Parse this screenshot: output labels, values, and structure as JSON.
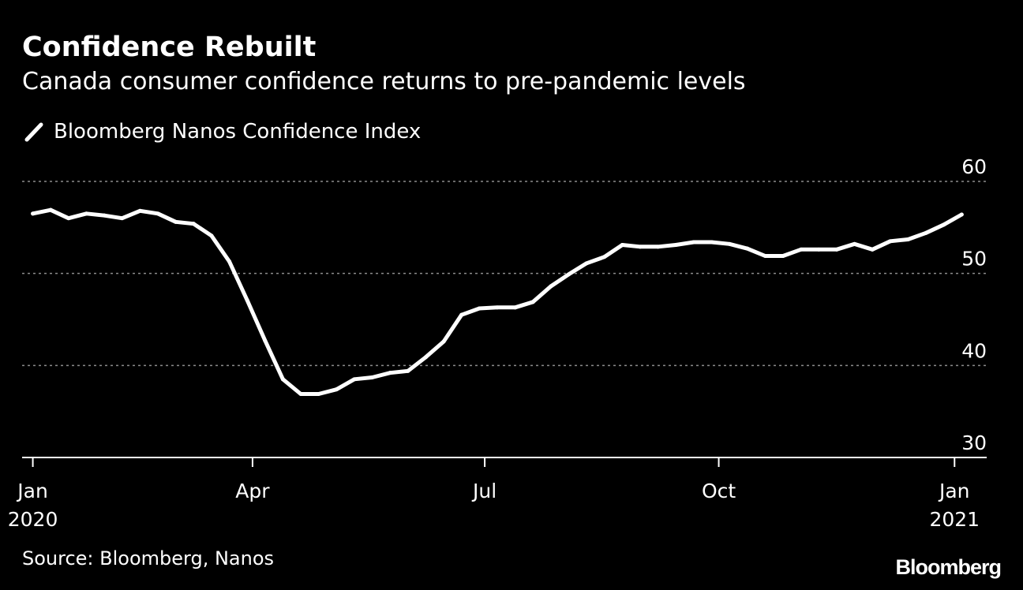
{
  "header": {
    "title": "Confidence Rebuilt",
    "subtitle": "Canada consumer confidence returns to pre-pandemic levels"
  },
  "legend": {
    "label": "Bloomberg Nanos Confidence Index"
  },
  "footer": {
    "source": "Source: Bloomberg, Nanos",
    "brand": "Bloomberg"
  },
  "colors": {
    "background": "#000000",
    "line": "#ffffff",
    "gridline": "#8c8c8c",
    "axis": "#ffffff",
    "text": "#ffffff"
  },
  "chart_data": {
    "type": "line",
    "title": "Confidence Rebuilt",
    "subtitle": "Canada consumer confidence returns to pre-pandemic levels",
    "xlabel": "",
    "ylabel": "",
    "ylim": [
      30,
      60
    ],
    "xlim_weeks": [
      -0.6,
      53.4
    ],
    "yticks": [
      30,
      40,
      50,
      60
    ],
    "grid": true,
    "legend_position": "top-left",
    "x_ticks": [
      {
        "week": 0,
        "line1": "Jan",
        "line2": "2020"
      },
      {
        "week": 12.3,
        "line1": "Apr",
        "line2": ""
      },
      {
        "week": 25.3,
        "line1": "Jul",
        "line2": ""
      },
      {
        "week": 38.4,
        "line1": "Oct",
        "line2": ""
      },
      {
        "week": 51.6,
        "line1": "Jan",
        "line2": "2021"
      }
    ],
    "series": [
      {
        "name": "Bloomberg Nanos Confidence Index",
        "start": "2020-01-03",
        "interval": "weekly",
        "week_index": [
          0,
          1,
          2,
          3,
          4,
          5,
          6,
          7,
          8,
          9,
          10,
          11,
          12,
          13,
          14,
          15,
          16,
          17,
          18,
          19,
          20,
          21,
          22,
          23,
          24,
          25,
          26,
          27,
          28,
          29,
          30,
          31,
          32,
          33,
          34,
          35,
          36,
          37,
          38,
          39,
          40,
          41,
          42,
          43,
          44,
          45,
          46,
          47,
          48,
          49,
          50,
          51,
          52
        ],
        "values": [
          56.5,
          56.9,
          56.0,
          56.5,
          56.3,
          56.0,
          56.8,
          56.5,
          55.6,
          55.4,
          54.1,
          51.3,
          47.1,
          42.7,
          38.5,
          36.9,
          36.9,
          37.4,
          38.5,
          38.7,
          39.2,
          39.4,
          40.9,
          42.6,
          45.5,
          46.2,
          46.3,
          46.3,
          46.9,
          48.6,
          49.9,
          51.1,
          51.8,
          53.1,
          52.9,
          52.9,
          53.1,
          53.4,
          53.4,
          53.2,
          52.7,
          51.9,
          51.9,
          52.6,
          52.6,
          52.6,
          53.2,
          52.6,
          53.5,
          53.7,
          54.4,
          55.3,
          56.4
        ]
      }
    ]
  }
}
